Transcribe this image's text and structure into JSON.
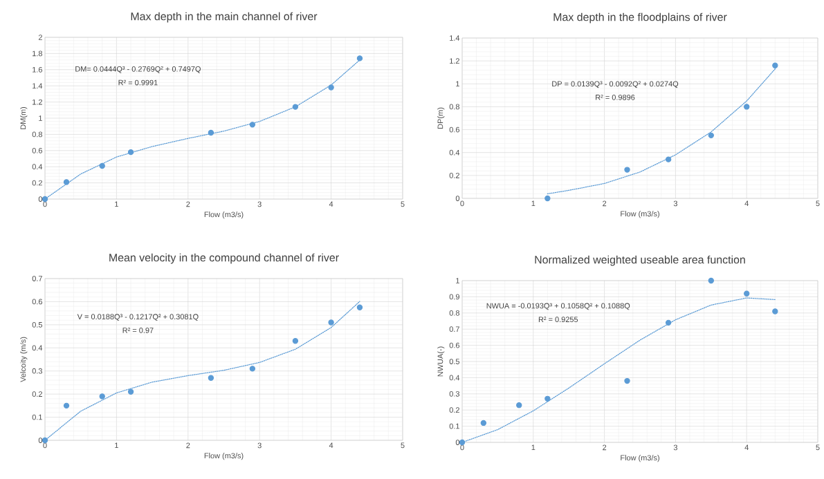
{
  "chart_data": [
    {
      "type": "scatter",
      "title": "Max depth in the main channel of river",
      "xlabel": "Flow (m3/s)",
      "ylabel": "DM(m)",
      "xlim": [
        0,
        5
      ],
      "xticks": [
        0,
        1,
        2,
        3,
        4,
        5
      ],
      "ylim": [
        0,
        2
      ],
      "yticks": [
        0,
        0.2,
        0.4,
        0.6,
        0.8,
        1,
        1.2,
        1.4,
        1.6,
        1.8,
        2
      ],
      "grid": true,
      "annotations": [
        "DM= 0.0444Q³ - 0.2769Q² + 0.7497Q",
        "R² = 0.9991"
      ],
      "series": [
        {
          "type": "scatter",
          "color": "#5b9bd5",
          "marker": "circle",
          "x": [
            0,
            0.3,
            0.8,
            1.2,
            2.32,
            2.9,
            3.5,
            4,
            4.4
          ],
          "values": [
            0,
            0.21,
            0.41,
            0.58,
            0.82,
            0.92,
            1.14,
            1.38,
            1.74
          ]
        },
        {
          "type": "line",
          "color": "#5b9bd5",
          "marker": "none",
          "line_style": "dotted",
          "x": [
            0,
            0.5,
            1,
            1.5,
            2,
            2.5,
            3,
            3.5,
            4,
            4.4
          ],
          "values": [
            0,
            0.31,
            0.52,
            0.65,
            0.75,
            0.84,
            0.96,
            1.14,
            1.41,
            1.72
          ]
        }
      ]
    },
    {
      "type": "scatter",
      "title": "Max depth in the floodplains of river",
      "xlabel": "Flow (m3/s)",
      "ylabel": "DP(m)",
      "xlim": [
        0,
        5
      ],
      "xticks": [
        0,
        1,
        2,
        3,
        4,
        5
      ],
      "ylim": [
        0,
        1.4
      ],
      "yticks": [
        0,
        0.2,
        0.4,
        0.6,
        0.8,
        1,
        1.2,
        1.4
      ],
      "grid": true,
      "annotations": [
        "DP = 0.0139Q³ - 0.0092Q² + 0.0274Q",
        "R² = 0.9896"
      ],
      "series": [
        {
          "type": "scatter",
          "color": "#5b9bd5",
          "marker": "circle",
          "x": [
            1.2,
            2.32,
            2.9,
            3.5,
            4,
            4.4
          ],
          "values": [
            0,
            0.25,
            0.34,
            0.55,
            0.8,
            1.16
          ]
        },
        {
          "type": "line",
          "color": "#5b9bd5",
          "marker": "none",
          "line_style": "dotted",
          "x": [
            1.2,
            1.5,
            2,
            2.5,
            3,
            3.5,
            4,
            4.4
          ],
          "values": [
            0.04,
            0.07,
            0.13,
            0.23,
            0.38,
            0.58,
            0.85,
            1.13
          ]
        }
      ]
    },
    {
      "type": "scatter",
      "title": "Mean velocity in the compound channel of river",
      "xlabel": "Flow (m3/s)",
      "ylabel": "Velcoity (m/s)",
      "xlim": [
        0,
        5
      ],
      "xticks": [
        0,
        1,
        2,
        3,
        4,
        5
      ],
      "ylim": [
        0,
        0.7
      ],
      "yticks": [
        0,
        0.1,
        0.2,
        0.3,
        0.4,
        0.5,
        0.6,
        0.7
      ],
      "grid": true,
      "annotations": [
        "V = 0.0188Q³ - 0.1217Q² + 0.3081Q",
        "R² = 0.97"
      ],
      "series": [
        {
          "type": "scatter",
          "color": "#5b9bd5",
          "marker": "circle",
          "x": [
            0,
            0.3,
            0.8,
            1.2,
            2.32,
            2.9,
            3.5,
            4,
            4.4
          ],
          "values": [
            0,
            0.15,
            0.19,
            0.21,
            0.27,
            0.31,
            0.43,
            0.51,
            0.575
          ]
        },
        {
          "type": "line",
          "color": "#5b9bd5",
          "marker": "none",
          "line_style": "dotted",
          "x": [
            0,
            0.5,
            1,
            1.5,
            2,
            2.5,
            3,
            3.5,
            4,
            4.4
          ],
          "values": [
            0,
            0.126,
            0.205,
            0.252,
            0.28,
            0.303,
            0.337,
            0.394,
            0.488,
            0.601
          ]
        }
      ]
    },
    {
      "type": "scatter",
      "title": "Normalized weighted useable area function",
      "xlabel": "Flow (m3/s)",
      "ylabel": "NWUA(-)",
      "xlim": [
        0,
        5
      ],
      "xticks": [
        0,
        1,
        2,
        3,
        4,
        5
      ],
      "ylim": [
        0,
        1
      ],
      "yticks": [
        0,
        0.1,
        0.2,
        0.3,
        0.4,
        0.5,
        0.6,
        0.7,
        0.8,
        0.9,
        1
      ],
      "grid": true,
      "annotations": [
        "NWUA = -0.0193Q³ + 0.1058Q² + 0.1088Q",
        "R² = 0.9255"
      ],
      "series": [
        {
          "type": "scatter",
          "color": "#5b9bd5",
          "marker": "circle",
          "x": [
            0,
            0.3,
            0.8,
            1.2,
            2.32,
            2.9,
            3.5,
            4,
            4.4
          ],
          "values": [
            0,
            0.12,
            0.23,
            0.27,
            0.38,
            0.74,
            1,
            0.92,
            0.81
          ]
        },
        {
          "type": "line",
          "color": "#5b9bd5",
          "marker": "none",
          "line_style": "dotted",
          "x": [
            0,
            0.5,
            1,
            1.5,
            2,
            2.5,
            3,
            3.5,
            4,
            4.4
          ],
          "values": [
            0,
            0.079,
            0.195,
            0.336,
            0.486,
            0.632,
            0.758,
            0.849,
            0.893,
            0.883
          ]
        }
      ]
    }
  ]
}
